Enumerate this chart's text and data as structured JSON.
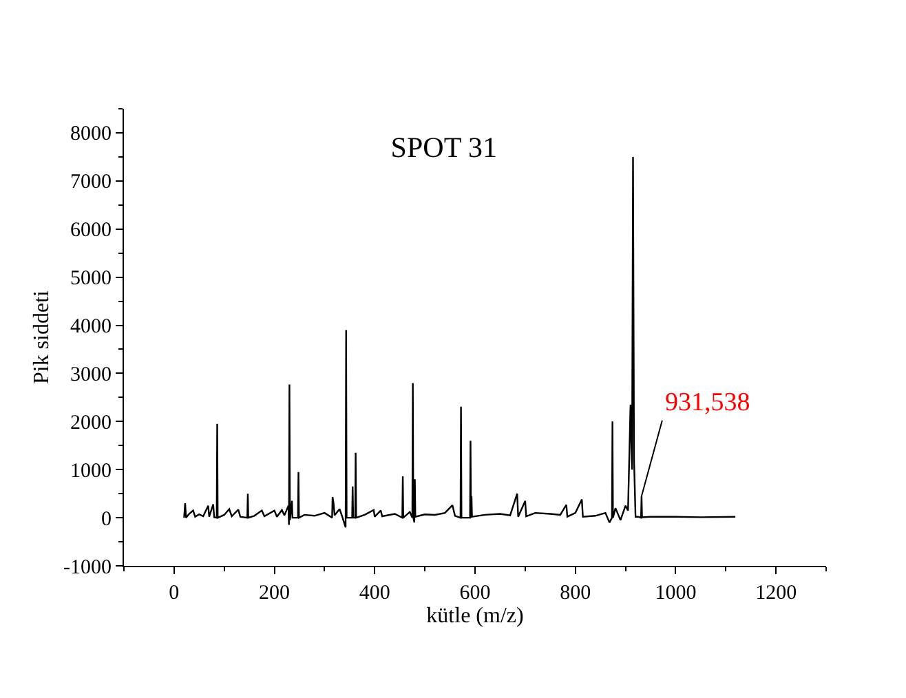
{
  "chart_data": {
    "type": "line",
    "title": "SPOT 31",
    "xlabel": "kütle (m/z)",
    "ylabel": "Pik siddeti",
    "x": [
      20,
      22,
      24,
      30,
      38,
      42,
      50,
      58,
      68,
      70,
      78,
      80,
      85,
      86,
      87,
      100,
      110,
      115,
      128,
      132,
      146,
      147,
      148,
      160,
      175,
      180,
      200,
      205,
      215,
      220,
      228,
      229,
      230,
      231,
      235,
      236,
      247,
      248,
      249,
      260,
      280,
      300,
      315,
      316,
      318,
      320,
      330,
      335,
      342,
      343,
      344,
      355,
      356,
      357,
      361,
      362,
      363,
      380,
      398,
      400,
      412,
      415,
      440,
      455,
      456,
      457,
      470,
      475,
      476,
      477,
      479,
      480,
      481,
      500,
      520,
      540,
      555,
      560,
      571,
      572,
      573,
      590,
      591,
      592,
      593,
      594,
      620,
      650,
      670,
      684,
      686,
      700,
      702,
      720,
      750,
      770,
      782,
      784,
      800,
      813,
      815,
      840,
      860,
      868,
      873,
      874,
      875,
      880,
      890,
      900,
      905,
      910,
      913,
      915,
      917,
      920,
      925,
      931,
      932,
      933,
      950,
      1000,
      1050,
      1119
    ],
    "series": [
      {
        "color": "#000000",
        "values": [
          0,
          300,
          0,
          80,
          150,
          20,
          70,
          30,
          250,
          20,
          280,
          10,
          0,
          1950,
          0,
          60,
          180,
          30,
          170,
          20,
          0,
          500,
          0,
          40,
          150,
          30,
          150,
          20,
          160,
          50,
          250,
          -150,
          2770,
          -50,
          350,
          0,
          0,
          950,
          0,
          60,
          40,
          100,
          0,
          430,
          300,
          50,
          180,
          30,
          -200,
          3900,
          0,
          0,
          650,
          0,
          0,
          1350,
          0,
          60,
          160,
          20,
          150,
          30,
          80,
          0,
          860,
          0,
          120,
          0,
          2800,
          0,
          -100,
          800,
          20,
          70,
          60,
          100,
          260,
          40,
          0,
          2310,
          0,
          0,
          1600,
          0,
          450,
          20,
          60,
          80,
          50,
          500,
          20,
          350,
          30,
          100,
          80,
          60,
          270,
          20,
          100,
          380,
          20,
          40,
          100,
          -100,
          0,
          2000,
          0,
          200,
          -50,
          250,
          150,
          2350,
          1000,
          7500,
          1200,
          20,
          20,
          0,
          450,
          10,
          20,
          20,
          10,
          20
        ]
      }
    ],
    "annotations": [
      {
        "text": "931,538",
        "x": 932,
        "y": 450
      }
    ],
    "xlim": [
      -100,
      1300
    ],
    "xticks": [
      0,
      200,
      400,
      600,
      800,
      1000,
      1200
    ],
    "ylim": [
      -1000,
      8500
    ],
    "yticks": [
      -1000,
      0,
      1000,
      2000,
      3000,
      4000,
      5000,
      6000,
      7000,
      8000
    ],
    "marker": "none",
    "line_style": "solid"
  }
}
